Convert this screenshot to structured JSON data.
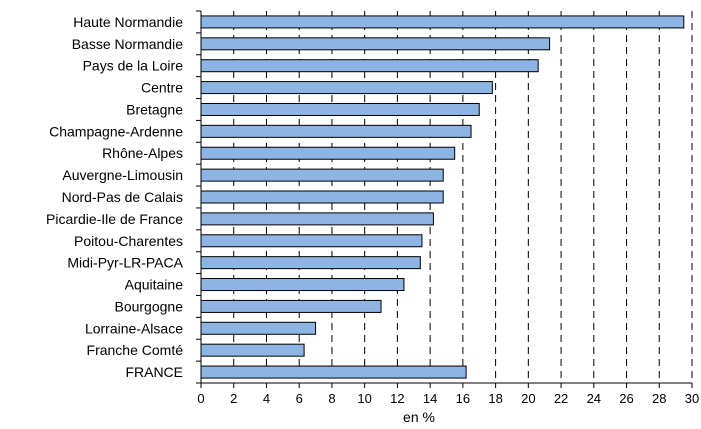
{
  "chart_data": {
    "type": "bar",
    "orientation": "horizontal",
    "categories": [
      "Haute Normandie",
      "Basse Normandie",
      "Pays de la Loire",
      "Centre",
      "Bretagne",
      "Champagne-Ardenne",
      "Rhône-Alpes",
      "Auvergne-Limousin",
      "Nord-Pas de Calais",
      "Picardie-Ile de France",
      "Poitou-Charentes",
      "Midi-Pyr-LR-PACA",
      "Aquitaine",
      "Bourgogne",
      "Lorraine-Alsace",
      "Franche Comté",
      "FRANCE"
    ],
    "values": [
      29.5,
      21.3,
      20.6,
      17.8,
      17.0,
      16.5,
      15.5,
      14.8,
      14.8,
      14.2,
      13.5,
      13.4,
      12.4,
      11.0,
      7.0,
      6.3,
      16.2
    ],
    "xlabel": "en %",
    "ylabel": "",
    "xlim": [
      0,
      30
    ],
    "xticks": [
      "0",
      "2",
      "4",
      "6",
      "8",
      "10",
      "12",
      "14",
      "16",
      "18",
      "20",
      "22",
      "24",
      "26",
      "28",
      "30"
    ],
    "grid": "dashed vertical lines",
    "colors": {
      "bar_fill": "#8db4e2",
      "bar_stroke": "#000000",
      "grid": "#000000"
    }
  }
}
